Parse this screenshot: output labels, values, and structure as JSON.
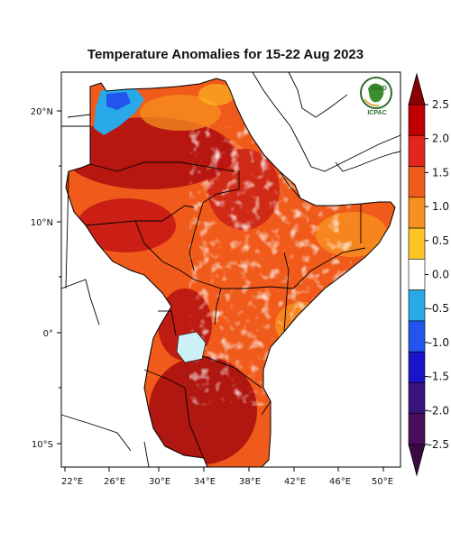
{
  "title": "Temperature Anomalies for 15-22 Aug 2023",
  "logo": {
    "top": "IGAD",
    "bottom": "ICPAC"
  },
  "axes": {
    "lat_labels": [
      "20°N",
      "10°N",
      "0°",
      "10°S"
    ],
    "lon_labels": [
      "22°E",
      "26°E",
      "30°E",
      "34°E",
      "38°E",
      "42°E",
      "46°E",
      "50°E"
    ]
  },
  "colorbar": {
    "labels": [
      "2.5",
      "2.0",
      "1.5",
      "1.0",
      "0.5",
      "0.0",
      "-0.5",
      "-1.0",
      "-1.5",
      "-2.0",
      "-2.5"
    ],
    "colors": [
      "#c00000",
      "#e2261d",
      "#f05a1a",
      "#f7901e",
      "#fdc223",
      "#ffffff",
      "#29a9e8",
      "#2255ee",
      "#1a14c8",
      "#3a137a",
      "#4b0d5a"
    ],
    "top_arrow_color": "#8b0000",
    "bottom_arrow_color": "#3b0a45"
  },
  "map": {
    "region": "Greater Horn of Africa",
    "lon_range": [
      21,
      52
    ],
    "lat_range": [
      -12,
      24
    ],
    "dominant_color": "#f05a1a",
    "hot_color": "#b01010",
    "cool_color": "#29a9e8",
    "lake_color": "#cdeff6"
  }
}
